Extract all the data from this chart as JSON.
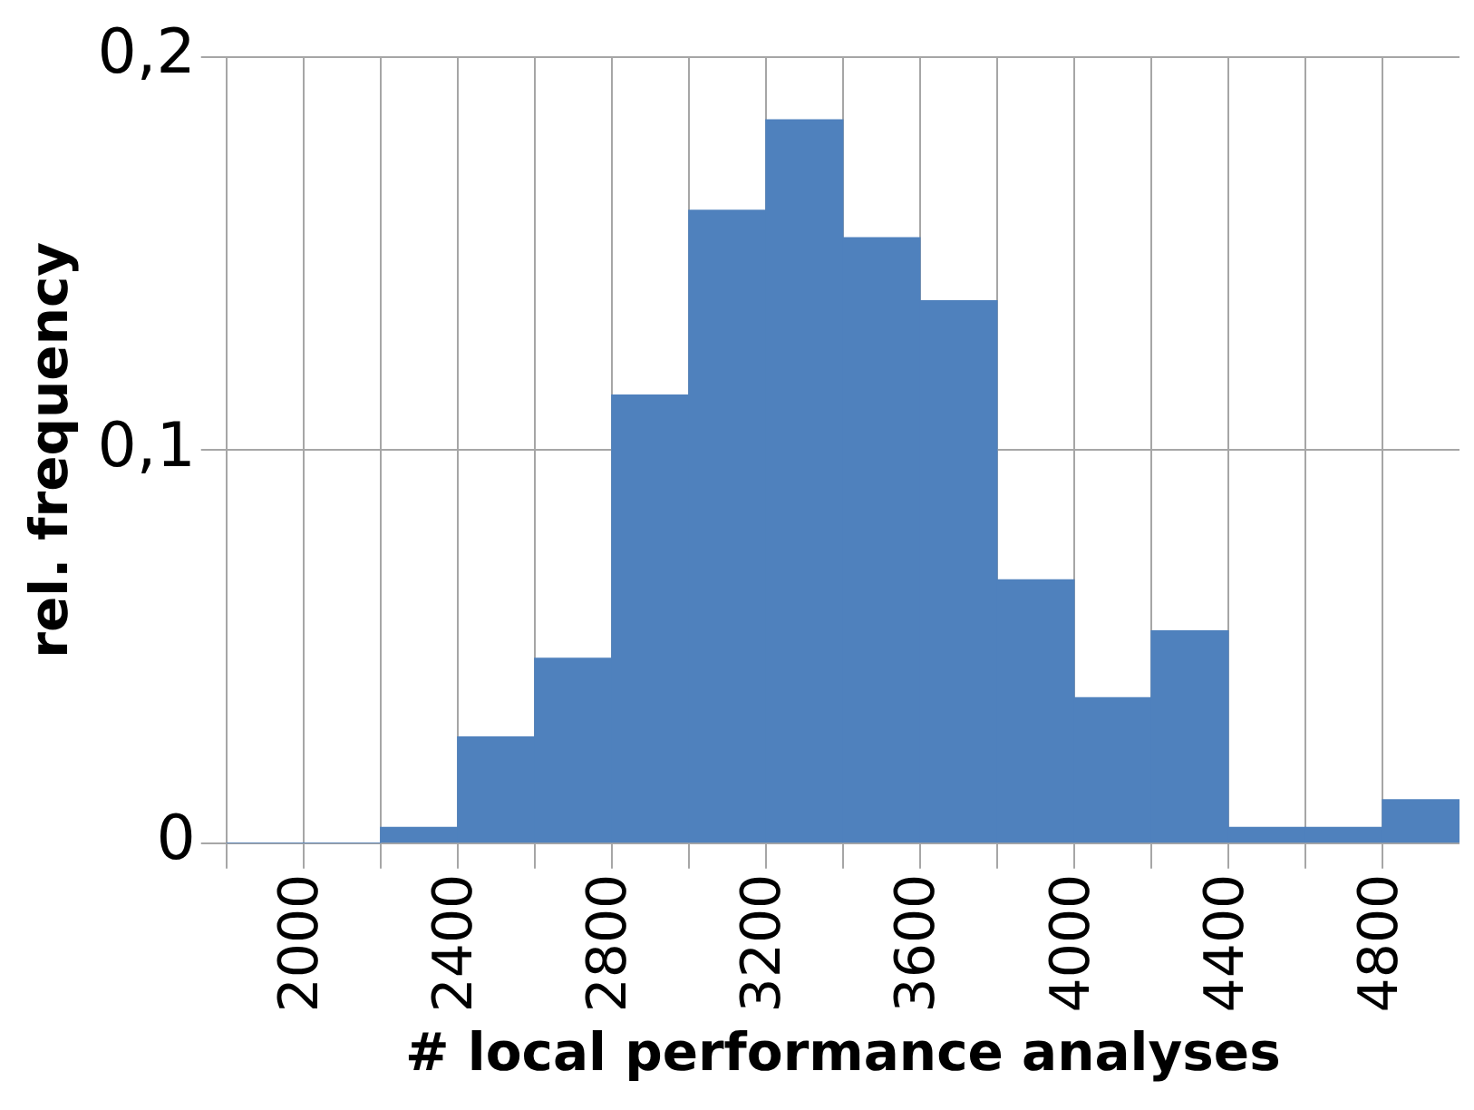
{
  "chart_data": {
    "type": "histogram",
    "xlabel": "# local performance analyses",
    "ylabel": "rel. frequency",
    "bins": [
      1800,
      2000,
      2200,
      2400,
      2600,
      2800,
      3000,
      3200,
      3400,
      3600,
      3800,
      4000,
      4200,
      4400,
      4600,
      4800,
      5000
    ],
    "values": [
      0,
      0,
      0.004,
      0.027,
      0.047,
      0.114,
      0.161,
      0.184,
      0.154,
      0.138,
      0.067,
      0.037,
      0.054,
      0.004,
      0.004,
      0.011
    ],
    "color": "#4f81bd",
    "xlim": [
      1800,
      5000
    ],
    "xticks": [
      {
        "value": 1800,
        "label": null
      },
      2000,
      {
        "value": 2200,
        "label": null
      },
      2400,
      {
        "value": 2600,
        "label": null
      },
      2800,
      {
        "value": 3000,
        "label": null
      },
      3200,
      {
        "value": 3400,
        "label": null
      },
      3600,
      {
        "value": 3800,
        "label": null
      },
      4000,
      {
        "value": 4200,
        "label": null
      },
      4400,
      {
        "value": 4600,
        "label": null
      },
      4800
    ],
    "ylim": [
      0,
      0.2
    ],
    "yticks": [
      {
        "value": 0,
        "label": "0"
      },
      {
        "value": 0.1,
        "label": "0,1"
      },
      {
        "value": 0.2,
        "label": "0,2"
      }
    ],
    "grid": true
  }
}
